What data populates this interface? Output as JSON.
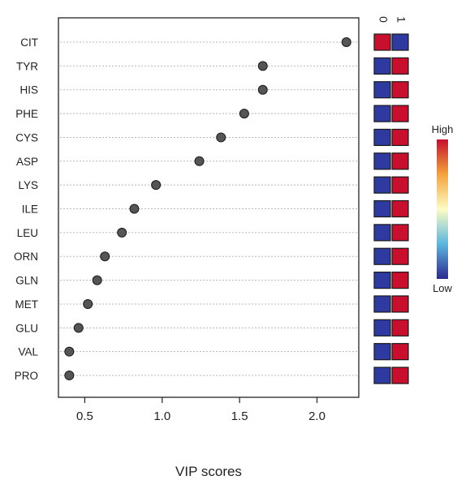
{
  "chart_data": {
    "type": "scatter",
    "xlabel": "VIP scores",
    "ylabel": "",
    "xlim": [
      0.33,
      2.27
    ],
    "xticks": [
      0.5,
      1.0,
      1.5,
      2.0
    ],
    "xtick_labels": [
      "0.5",
      "1.0",
      "1.5",
      "2.0"
    ],
    "grid": "dotted horizontal guide line per feature",
    "features": [
      "CIT",
      "TYR",
      "HIS",
      "PHE",
      "CYS",
      "ASP",
      "LYS",
      "ILE",
      "LEU",
      "ORN",
      "GLN",
      "MET",
      "GLU",
      "VAL",
      "PRO"
    ],
    "values": [
      2.19,
      1.65,
      1.65,
      1.53,
      1.38,
      1.24,
      0.96,
      0.82,
      0.74,
      0.63,
      0.58,
      0.52,
      0.46,
      0.4,
      0.4
    ],
    "marker_color": "#555555",
    "heatmap": {
      "groups": [
        "0",
        "1"
      ],
      "levels": [
        [
          "high",
          "low"
        ],
        [
          "low",
          "high"
        ],
        [
          "low",
          "high"
        ],
        [
          "low",
          "high"
        ],
        [
          "low",
          "high"
        ],
        [
          "low",
          "high"
        ],
        [
          "low",
          "high"
        ],
        [
          "low",
          "high"
        ],
        [
          "low",
          "high"
        ],
        [
          "low",
          "high"
        ],
        [
          "low",
          "high"
        ],
        [
          "low",
          "high"
        ],
        [
          "low",
          "high"
        ],
        [
          "low",
          "high"
        ],
        [
          "low",
          "high"
        ]
      ],
      "colors": {
        "high": "#c8102e",
        "low": "#2f3aa0"
      }
    },
    "legend": {
      "high_label": "High",
      "low_label": "Low",
      "placement": "right",
      "gradient": [
        "#2b2a8f",
        "#5bb6df",
        "#fdfcc4",
        "#f5a33a",
        "#c5102e"
      ]
    }
  }
}
